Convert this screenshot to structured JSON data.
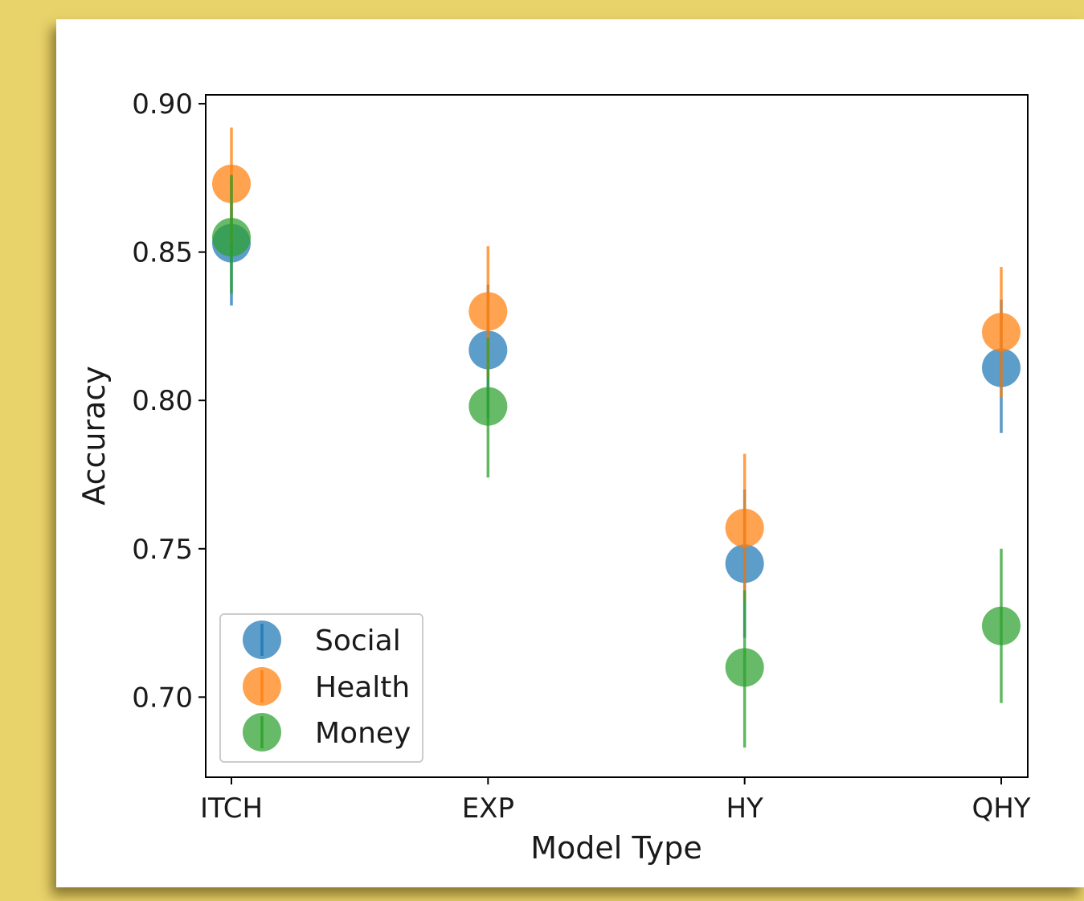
{
  "chart_data": {
    "type": "scatter",
    "title": "",
    "xlabel": "Model Type",
    "ylabel": "Accuracy",
    "categories": [
      "ITCH",
      "EXP",
      "HY",
      "QHY"
    ],
    "ylim": [
      0.673,
      0.903
    ],
    "yticks": [
      0.7,
      0.75,
      0.8,
      0.85,
      0.9
    ],
    "ytick_labels": [
      "0.70",
      "0.75",
      "0.80",
      "0.85",
      "0.90"
    ],
    "grid": false,
    "legend": {
      "position": "lower-left"
    },
    "series": [
      {
        "name": "Social",
        "color": "#1f77b4",
        "values": [
          0.853,
          0.817,
          0.745,
          0.811
        ],
        "err_low": [
          0.832,
          0.794,
          0.72,
          0.789
        ],
        "err_high": [
          0.875,
          0.839,
          0.77,
          0.834
        ]
      },
      {
        "name": "Health",
        "color": "#ff7f0e",
        "values": [
          0.873,
          0.83,
          0.757,
          0.823
        ],
        "err_low": [
          0.853,
          0.808,
          0.732,
          0.801
        ],
        "err_high": [
          0.892,
          0.852,
          0.782,
          0.845
        ]
      },
      {
        "name": "Money",
        "color": "#2ca02c",
        "values": [
          0.855,
          0.798,
          0.71,
          0.724
        ],
        "err_low": [
          0.836,
          0.774,
          0.683,
          0.698
        ],
        "err_high": [
          0.876,
          0.821,
          0.736,
          0.75
        ]
      }
    ]
  }
}
